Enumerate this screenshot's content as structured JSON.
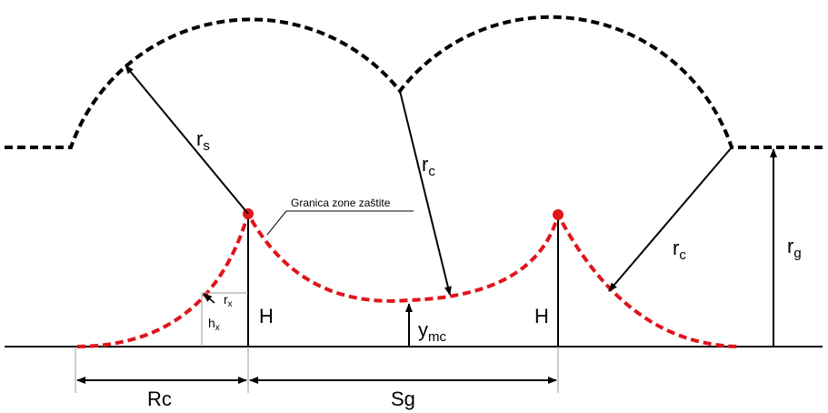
{
  "labels": [
    {
      "main": "r",
      "sub": "s"
    },
    {
      "main": "r",
      "sub": "c"
    },
    {
      "main": "r",
      "sub": "c"
    },
    {
      "main": "r",
      "sub": "g"
    },
    {
      "main": "r",
      "sub": "x"
    },
    {
      "main": "h",
      "sub": "x"
    },
    {
      "main": "H"
    },
    {
      "main": "H"
    },
    {
      "main": "y",
      "sub": "mc"
    },
    {
      "main": "Rc"
    },
    {
      "main": "Sg"
    }
  ],
  "annotation": "Granica zone zaštite"
}
